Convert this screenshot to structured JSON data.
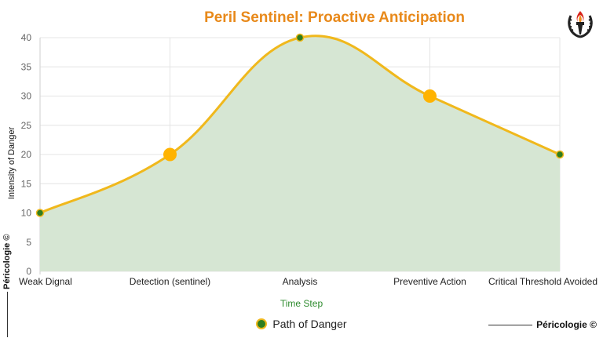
{
  "chart_data": {
    "type": "area",
    "title": "Peril Sentinel: Proactive Anticipation",
    "xlabel": "Time Step",
    "ylabel": "Intensity of Danger",
    "categories": [
      "Weak Dignal",
      "Detection (sentinel)",
      "Analysis",
      "Preventive Action",
      "Critical Threshold Avoided"
    ],
    "series": [
      {
        "name": "Path of Danger",
        "values": [
          10,
          20,
          40,
          30,
          20
        ]
      }
    ],
    "ylim": [
      0,
      40
    ],
    "yticks": [
      0,
      5,
      10,
      15,
      20,
      25,
      30,
      35,
      40
    ],
    "grid": true,
    "legend": "bottom",
    "highlighted_points": [
      1,
      3
    ],
    "colors": {
      "line": "#f0b81c",
      "fill": "#d6e6d3",
      "point": "#2f7d1f",
      "highlight": "#ffb300",
      "title": "#e8891a",
      "xlabel": "#2e8b2e"
    }
  },
  "branding": {
    "side_text": "Péricologie ©",
    "footer_text": "Péricologie ©",
    "logo_icon": "torch-laurel-emblem"
  }
}
